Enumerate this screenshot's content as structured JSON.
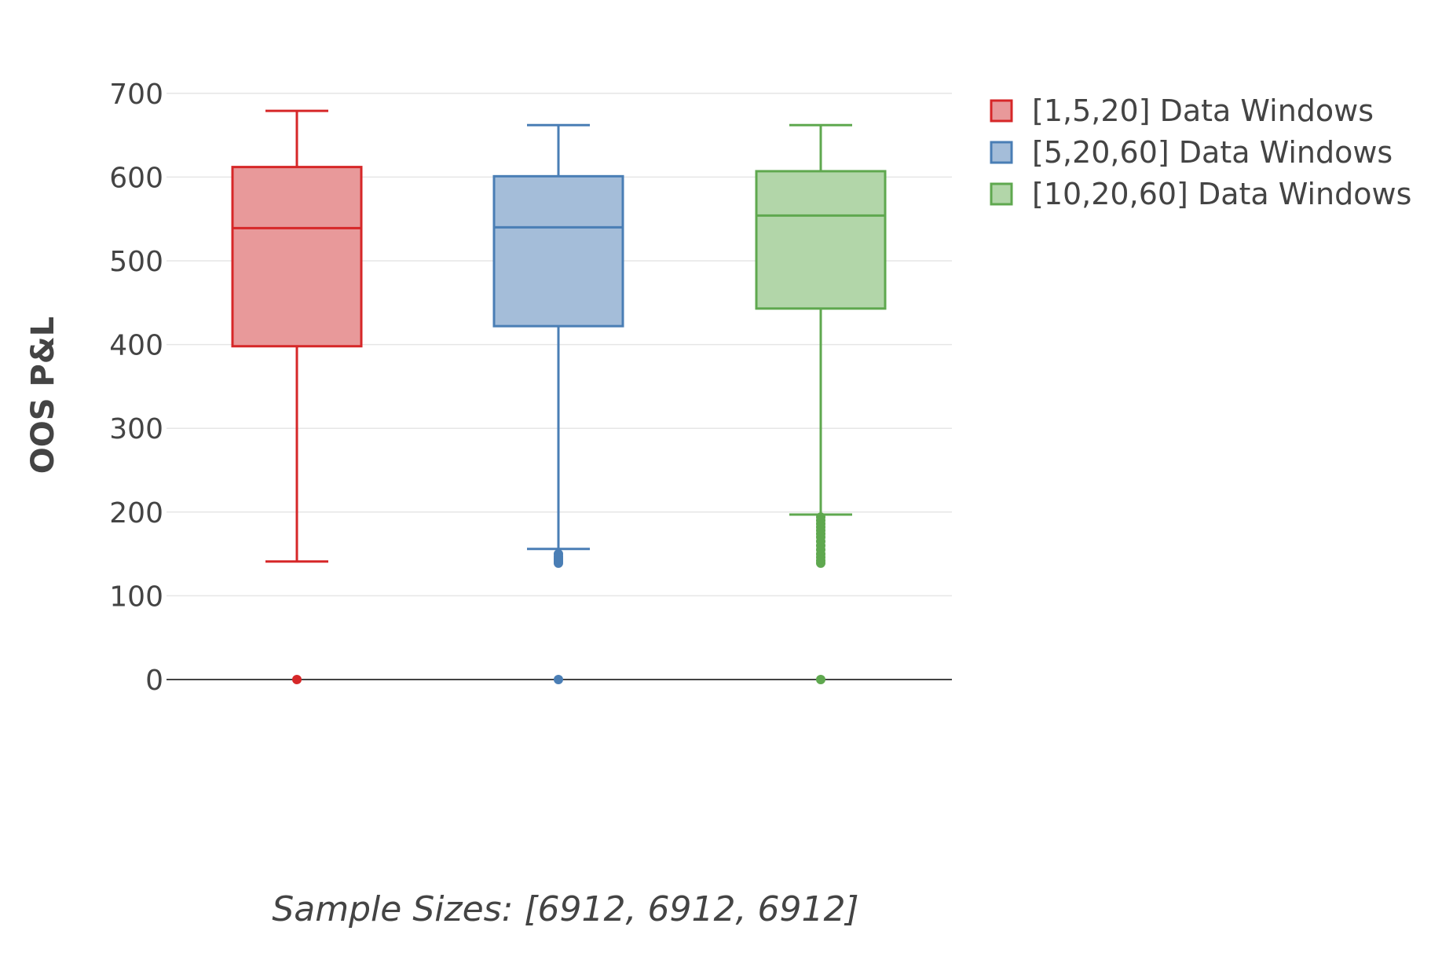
{
  "chart_data": {
    "type": "box",
    "title": "",
    "xlabel": "Sample Sizes: [6912, 6912, 6912]",
    "ylabel": "OOS P&L",
    "ylim": [
      -50,
      720
    ],
    "yticks": [
      0,
      100,
      200,
      300,
      400,
      500,
      600,
      700
    ],
    "ytick_labels": [
      "0",
      "100",
      "200",
      "300",
      "400",
      "500",
      "600",
      "700"
    ],
    "grid": true,
    "legend_position": "top-right",
    "series": [
      {
        "name": "[1,5,20] Data Windows",
        "color": "#d62728",
        "fill": "#e8999a",
        "q1": 398,
        "median": 539,
        "q3": 612,
        "whisker_low": 141,
        "whisker_high": 679,
        "outliers": [
          0
        ]
      },
      {
        "name": "[5,20,60] Data Windows",
        "color": "#4a7eb5",
        "fill": "#a4bdd9",
        "q1": 422,
        "median": 540,
        "q3": 601,
        "whisker_low": 156,
        "whisker_high": 662,
        "outliers": [
          150,
          147,
          145,
          143,
          141,
          139,
          0
        ]
      },
      {
        "name": "[10,20,60] Data Windows",
        "color": "#5fa84f",
        "fill": "#b2d6a9",
        "q1": 443,
        "median": 554,
        "q3": 607,
        "whisker_low": 197,
        "whisker_high": 662,
        "outliers": [
          194,
          190,
          186,
          182,
          178,
          174,
          170,
          165,
          160,
          155,
          150,
          146,
          142,
          139,
          0
        ]
      }
    ]
  }
}
